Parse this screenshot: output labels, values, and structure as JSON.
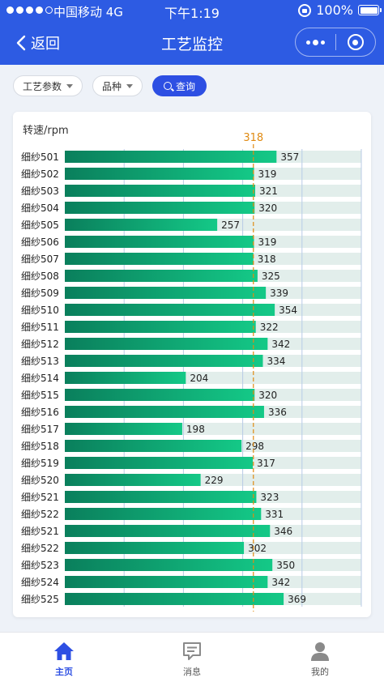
{
  "status_bar": {
    "carrier": "中国移动 4G",
    "time": "下午1:19",
    "battery": "100%"
  },
  "nav": {
    "back_label": "返回",
    "title": "工艺监控"
  },
  "filters": {
    "process_label": "工艺参数",
    "variety_label": "品种",
    "query_label": "查询"
  },
  "chart_data": {
    "type": "bar",
    "orientation": "horizontal",
    "unit_label": "转速/rpm",
    "reference_line": {
      "value": 318,
      "label": "318"
    },
    "xlim": [
      0,
      500
    ],
    "categories": [
      "细纱501",
      "细纱502",
      "细纱503",
      "细纱504",
      "细纱505",
      "细纱506",
      "细纱507",
      "细纱508",
      "细纱509",
      "细纱510",
      "细纱511",
      "细纱512",
      "细纱513",
      "细纱514",
      "细纱515",
      "细纱516",
      "细纱517",
      "细纱518",
      "细纱519",
      "细纱520",
      "细纱521",
      "细纱522",
      "细纱521",
      "细纱522",
      "细纱523",
      "细纱524",
      "细纱525"
    ],
    "values": [
      357,
      319,
      321,
      320,
      257,
      319,
      318,
      325,
      339,
      354,
      322,
      342,
      334,
      204,
      320,
      336,
      198,
      298,
      317,
      229,
      323,
      331,
      346,
      302,
      350,
      342,
      369
    ],
    "colors": {
      "bar_start": "#0a7f5c",
      "bar_end": "#14c987",
      "track": "#e2eeeb",
      "reference": "#e08a12",
      "grid": "#b8cbe6"
    }
  },
  "tabbar": {
    "items": [
      {
        "label": "主页",
        "active": true
      },
      {
        "label": "消息",
        "active": false
      },
      {
        "label": "我的",
        "active": false
      }
    ]
  }
}
